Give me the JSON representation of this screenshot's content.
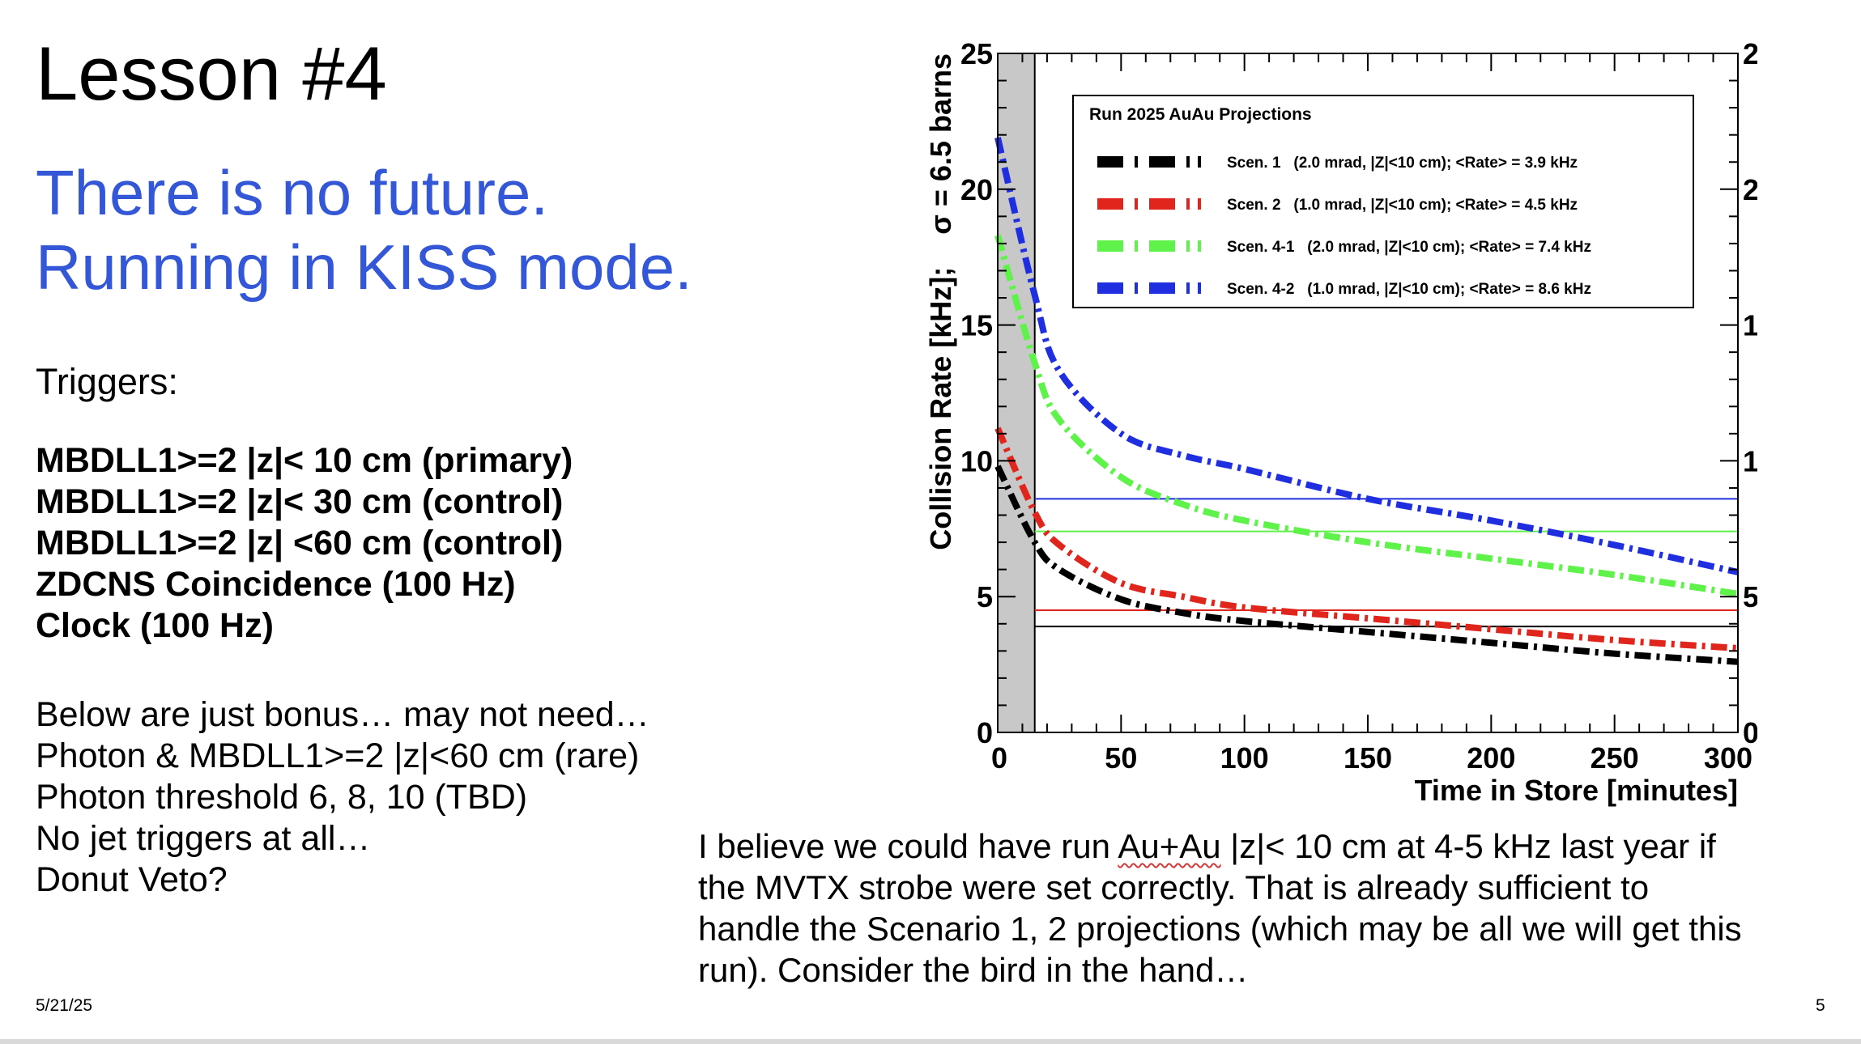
{
  "slide": {
    "title": "Lesson #4",
    "subtitle_lines": [
      "There is no future.",
      "Running in KISS mode."
    ],
    "triggers_heading": "Triggers:",
    "triggers": [
      "MBDLL1>=2 |z|< 10 cm (primary)",
      "MBDLL1>=2 |z|< 30 cm (control)",
      "MBDLL1>=2 |z| <60 cm (control)",
      "ZDCNS Coincidence (100 Hz)",
      "Clock (100 Hz)"
    ],
    "bonus": [
      "Below are just bonus… may not need…",
      "Photon  & MBDLL1>=2 |z|<60 cm (rare)",
      "Photon threshold 6, 8, 10 (TBD)",
      "No jet triggers at all…",
      "Donut Veto?"
    ],
    "note": {
      "line1_pre": "I believe we could have run ",
      "line1_flag": "Au+Au",
      "line1_post": " |z|< 10 cm at 4-5 kHz last year if",
      "line2": "the MVTX strobe were set correctly.    That is already sufficient to",
      "line3": "handle the Scenario 1, 2 projections (which may be all we will get this",
      "line4": "run).     Consider the bird in the hand…"
    },
    "date": "5/21/25",
    "page_number": "5"
  },
  "colors": {
    "subtitle": "#3357d6",
    "scen1": "#000000",
    "scen2": "#e0261c",
    "scen41": "#5ff24a",
    "scen42": "#1f2fe0",
    "shade": "#c8c8c8"
  },
  "chart_data": {
    "type": "line",
    "legend_title": "Run 2025 AuAu Projections",
    "legend_placement": "top-right",
    "xlabel": "Time in Store [minutes]",
    "ylabel": "Collision Rate [kHz];    σ = 6.5 barns",
    "xlim": [
      0,
      300
    ],
    "ylim": [
      0,
      25
    ],
    "xticks": [
      0,
      50,
      100,
      150,
      200,
      250,
      300
    ],
    "yticks": [
      0,
      5,
      10,
      15,
      20,
      25
    ],
    "shaded_x_range": [
      0,
      15
    ],
    "x": [
      0,
      15,
      25,
      50,
      75,
      100,
      150,
      200,
      250,
      300
    ],
    "series": [
      {
        "name": "Scen. 1   (2.0 mrad, |Z|<10 cm); <Rate> = 3.9 kHz",
        "color_key": "scen1",
        "avg": 3.9,
        "values": [
          9.8,
          7.0,
          6.0,
          4.9,
          4.4,
          4.1,
          3.7,
          3.3,
          2.9,
          2.6
        ]
      },
      {
        "name": "Scen. 2   (1.0 mrad, |Z|<10 cm); <Rate> = 4.5 kHz",
        "color_key": "scen2",
        "avg": 4.5,
        "values": [
          11.2,
          8.1,
          6.9,
          5.5,
          5.0,
          4.6,
          4.2,
          3.8,
          3.4,
          3.1
        ]
      },
      {
        "name": "Scen. 4-1   (2.0 mrad, |Z|<10 cm); <Rate> = 7.4 kHz",
        "color_key": "scen41",
        "avg": 7.4,
        "values": [
          18.3,
          13.6,
          11.5,
          9.4,
          8.4,
          7.8,
          7.0,
          6.4,
          5.8,
          5.1
        ]
      },
      {
        "name": "Scen. 4-2   (1.0 mrad, |Z|<10 cm); <Rate> = 8.6 kHz",
        "color_key": "scen42",
        "avg": 8.6,
        "values": [
          21.9,
          16.1,
          13.3,
          11.0,
          10.2,
          9.7,
          8.6,
          7.8,
          6.9,
          5.9
        ]
      }
    ]
  }
}
